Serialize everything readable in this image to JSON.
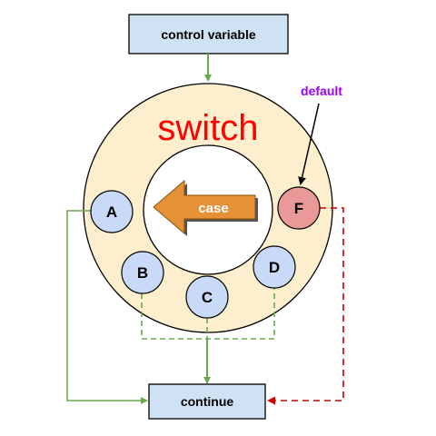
{
  "boxes": {
    "control": "control variable",
    "continue": "continue"
  },
  "switch_label": "switch",
  "case_label": "case",
  "default_label": "default",
  "nodes": {
    "a": "A",
    "b": "B",
    "c": "C",
    "d": "D",
    "f": "F"
  },
  "colors": {
    "box_fill": "#cfe2f3",
    "ring_fill": "#fdeecd",
    "node_fill": "#c9daf8",
    "default_node_fill": "#ea9999",
    "case_arrow": "#e69138",
    "switch_text": "#ff0000",
    "default_text": "#9900ff",
    "flow_green": "#6aa84f",
    "flow_red": "#cc0000"
  }
}
